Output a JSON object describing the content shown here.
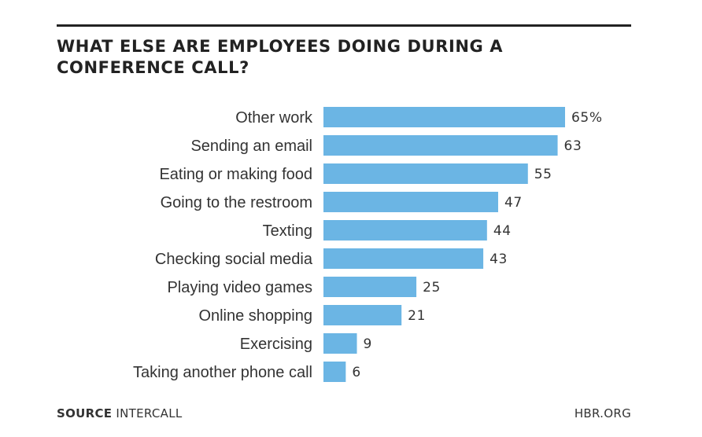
{
  "chart_data": {
    "type": "bar",
    "orientation": "horizontal",
    "title": "WHAT ELSE ARE EMPLOYEES DOING DURING A CONFERENCE CALL?",
    "categories": [
      "Other work",
      "Sending an email",
      "Eating or making food",
      "Going to the restroom",
      "Texting",
      "Checking social media",
      "Playing video games",
      "Online shopping",
      "Exercising",
      "Taking another phone call"
    ],
    "values": [
      65,
      63,
      55,
      47,
      44,
      43,
      25,
      21,
      9,
      6
    ],
    "value_labels": [
      "65%",
      "63",
      "55",
      "47",
      "44",
      "43",
      "25",
      "21",
      "9",
      "6"
    ],
    "bar_color": "#6bb5e4",
    "xlim": [
      0,
      65
    ],
    "grid": false,
    "legend": "none"
  },
  "footer": {
    "source_key": "SOURCE",
    "source_value": "INTERCALL",
    "brand": "HBR.ORG"
  }
}
